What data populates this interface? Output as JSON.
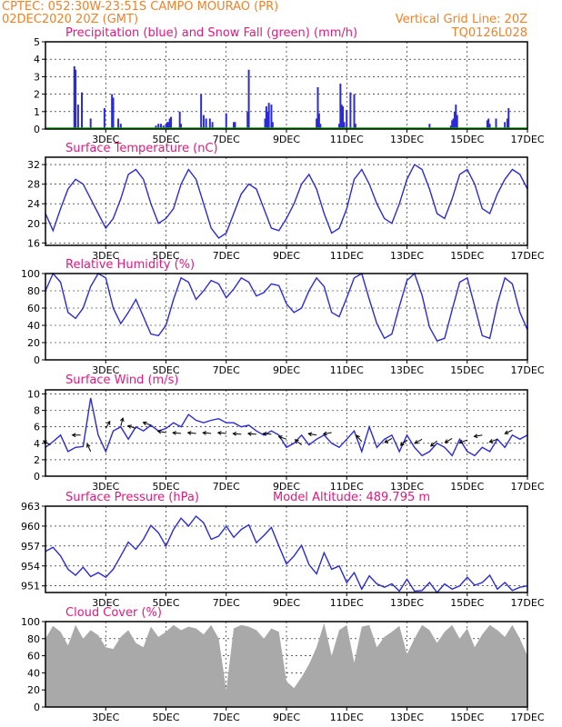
{
  "header": {
    "line1": "CPTEC:   052:30W-23:51S  CAMPO MOURAO (PR)",
    "line2": "02DEC2020 20Z (GMT)",
    "grid_note": "Vertical Grid Line: 20Z",
    "code": "TQ0126L028"
  },
  "x_axis": {
    "start_hour": -20,
    "end_hour": 364,
    "tick_labels": [
      "3DEC",
      "5DEC",
      "7DEC",
      "9DEC",
      "11DEC",
      "13DEC",
      "15DEC",
      "17DEC"
    ],
    "tick_hours": [
      28,
      76,
      124,
      172,
      220,
      268,
      316,
      364
    ]
  },
  "colors": {
    "header": "#f08228",
    "title": "#e0197d",
    "line": "#2b2bd6",
    "snow": "#00b400",
    "cloud": "#a9a9a9"
  },
  "chart_data": [
    {
      "id": "precip",
      "type": "bar",
      "title": "Precipitation (blue) and Snow Fall (green) (mm/h)",
      "ylim": [
        0,
        5
      ],
      "yticks": [
        "0",
        "1",
        "2",
        "3",
        "4",
        "5"
      ],
      "series": [
        {
          "name": "Precipitation",
          "x": [
            3,
            4,
            6,
            9,
            16,
            27,
            33,
            34,
            38,
            40,
            68,
            70,
            72,
            74,
            76,
            77,
            78,
            79,
            80,
            87,
            88,
            104,
            106,
            108,
            111,
            113,
            124,
            130,
            131,
            141,
            142,
            155,
            156,
            157,
            158,
            160,
            161,
            196,
            197,
            198,
            199,
            214,
            215,
            216,
            217,
            218,
            220,
            223,
            226,
            227,
            286,
            303,
            304,
            305,
            306,
            307,
            308,
            332,
            333,
            334,
            339,
            346,
            348,
            349
          ],
          "values": [
            3.6,
            3.4,
            1.4,
            2.1,
            0.6,
            1.2,
            2.0,
            1.8,
            0.6,
            0.3,
            0.2,
            0.3,
            0.3,
            0.2,
            0.3,
            0.4,
            0.4,
            0.6,
            0.7,
            1.0,
            0.3,
            2.0,
            0.8,
            0.6,
            0.6,
            0.4,
            0.9,
            0.4,
            0.4,
            1.0,
            3.4,
            0.6,
            1.3,
            1.0,
            1.5,
            1.4,
            0.4,
            0.6,
            2.4,
            0.9,
            0.3,
            0.3,
            2.6,
            1.4,
            1.3,
            0.4,
            1.1,
            2.1,
            2.0,
            0.3,
            0.3,
            0.2,
            0.5,
            0.6,
            1.0,
            1.4,
            0.8,
            0.5,
            0.6,
            0.3,
            0.6,
            0.4,
            0.6,
            1.2
          ]
        },
        {
          "name": "Snow Fall",
          "x": [],
          "values": []
        }
      ]
    },
    {
      "id": "temp",
      "type": "line",
      "title": "Surface Temperature (nC)",
      "ylim": [
        15.5,
        33.5
      ],
      "yticks": [
        "16",
        "20",
        "24",
        "28",
        "32"
      ],
      "x": [
        -20,
        -14,
        -8,
        -2,
        4,
        10,
        16,
        22,
        28,
        34,
        40,
        46,
        52,
        58,
        64,
        70,
        76,
        82,
        88,
        94,
        100,
        106,
        112,
        118,
        124,
        130,
        136,
        142,
        148,
        154,
        160,
        166,
        172,
        178,
        184,
        190,
        196,
        202,
        208,
        214,
        220,
        226,
        232,
        238,
        244,
        250,
        256,
        262,
        268,
        274,
        280,
        286,
        292,
        298,
        304,
        310,
        316,
        322,
        328,
        334,
        340,
        346,
        352,
        358,
        364
      ],
      "values": [
        22,
        18.5,
        23,
        27,
        29,
        28,
        25,
        22,
        19,
        21,
        25,
        30,
        31,
        29,
        24,
        20,
        21,
        23,
        28,
        31,
        29,
        24,
        19,
        17,
        18,
        22,
        26,
        28,
        27,
        23,
        19,
        18.5,
        21,
        24,
        28,
        30,
        27,
        22,
        18,
        19,
        23,
        29,
        31,
        28,
        24,
        21,
        20,
        24,
        29,
        32,
        31,
        27,
        22,
        21,
        25,
        30,
        31,
        28,
        23,
        22,
        26,
        29,
        31,
        30,
        27
      ]
    },
    {
      "id": "rh",
      "type": "line",
      "title": "Relative Humidity (%)",
      "ylim": [
        0,
        100
      ],
      "yticks": [
        "0",
        "20",
        "40",
        "60",
        "80",
        "100"
      ],
      "x": [
        -20,
        -14,
        -8,
        -2,
        4,
        10,
        16,
        22,
        28,
        34,
        40,
        46,
        52,
        58,
        64,
        70,
        76,
        82,
        88,
        94,
        100,
        106,
        112,
        118,
        124,
        130,
        136,
        142,
        148,
        154,
        160,
        166,
        172,
        178,
        184,
        190,
        196,
        202,
        208,
        214,
        220,
        226,
        232,
        238,
        244,
        250,
        256,
        262,
        268,
        274,
        280,
        286,
        292,
        298,
        304,
        310,
        316,
        322,
        328,
        334,
        340,
        346,
        352,
        358,
        364
      ],
      "values": [
        80,
        100,
        90,
        55,
        48,
        60,
        85,
        100,
        95,
        60,
        42,
        55,
        70,
        50,
        30,
        28,
        40,
        70,
        95,
        90,
        70,
        80,
        92,
        88,
        72,
        82,
        95,
        90,
        74,
        78,
        88,
        86,
        65,
        55,
        60,
        80,
        95,
        85,
        55,
        50,
        72,
        95,
        100,
        70,
        42,
        25,
        30,
        62,
        92,
        100,
        75,
        38,
        22,
        25,
        58,
        90,
        95,
        62,
        28,
        25,
        65,
        95,
        88,
        55,
        35
      ]
    },
    {
      "id": "wind",
      "type": "line",
      "title": "Surface Wind (m/s)",
      "ylim": [
        0,
        10.5
      ],
      "yticks": [
        "0",
        "2",
        "4",
        "6",
        "8",
        "10"
      ],
      "x": [
        -20,
        -14,
        -8,
        -2,
        4,
        10,
        16,
        22,
        28,
        34,
        40,
        46,
        52,
        58,
        64,
        70,
        76,
        82,
        88,
        94,
        100,
        106,
        112,
        118,
        124,
        130,
        136,
        142,
        148,
        154,
        160,
        166,
        172,
        178,
        184,
        190,
        196,
        202,
        208,
        214,
        220,
        226,
        232,
        238,
        244,
        250,
        256,
        262,
        268,
        274,
        280,
        286,
        292,
        298,
        304,
        310,
        316,
        322,
        328,
        334,
        340,
        346,
        352,
        358,
        364
      ],
      "values": [
        3.5,
        4.2,
        5.0,
        3.0,
        3.5,
        3.6,
        9.5,
        5.0,
        3.0,
        5.5,
        6.0,
        4.5,
        6.0,
        5.5,
        6.2,
        5.5,
        5.8,
        6.5,
        6.0,
        7.5,
        6.8,
        6.5,
        6.8,
        7.0,
        6.5,
        6.5,
        6.0,
        6.2,
        5.5,
        5.0,
        5.5,
        5.0,
        3.5,
        4.0,
        5.0,
        3.8,
        4.5,
        5.0,
        4.0,
        3.5,
        4.5,
        5.5,
        3.0,
        6.0,
        3.5,
        4.5,
        5.0,
        3.0,
        5.0,
        3.5,
        2.5,
        3.0,
        4.0,
        3.5,
        2.5,
        4.5,
        3.0,
        2.5,
        3.5,
        3.0,
        4.5,
        3.5,
        5.0,
        4.5,
        5.0
      ],
      "arrows": [
        {
          "x": -16,
          "y": 3.8,
          "angle": 210
        },
        {
          "x": 8,
          "y": 5.0,
          "angle": 180
        },
        {
          "x": 16,
          "y": 3.0,
          "angle": 245
        },
        {
          "x": 28,
          "y": 5.8,
          "angle": 300
        },
        {
          "x": 40,
          "y": 6.1,
          "angle": 285
        },
        {
          "x": 52,
          "y": 5.8,
          "angle": 200
        },
        {
          "x": 64,
          "y": 6.2,
          "angle": 200
        },
        {
          "x": 76,
          "y": 5.3,
          "angle": 190
        },
        {
          "x": 88,
          "y": 5.2,
          "angle": 185
        },
        {
          "x": 100,
          "y": 5.2,
          "angle": 185
        },
        {
          "x": 112,
          "y": 5.2,
          "angle": 185
        },
        {
          "x": 124,
          "y": 5.2,
          "angle": 185
        },
        {
          "x": 136,
          "y": 5.1,
          "angle": 185
        },
        {
          "x": 148,
          "y": 5.1,
          "angle": 185
        },
        {
          "x": 160,
          "y": 5.1,
          "angle": 185
        },
        {
          "x": 172,
          "y": 4.5,
          "angle": 200
        },
        {
          "x": 184,
          "y": 3.8,
          "angle": 220
        },
        {
          "x": 196,
          "y": 5.0,
          "angle": 190
        },
        {
          "x": 208,
          "y": 5.3,
          "angle": 170
        },
        {
          "x": 232,
          "y": 4.2,
          "angle": 230
        },
        {
          "x": 256,
          "y": 4.6,
          "angle": 150
        },
        {
          "x": 268,
          "y": 4.4,
          "angle": 140
        },
        {
          "x": 280,
          "y": 4.5,
          "angle": 150
        },
        {
          "x": 292,
          "y": 4.3,
          "angle": 140
        },
        {
          "x": 304,
          "y": 4.6,
          "angle": 150
        },
        {
          "x": 316,
          "y": 4.4,
          "angle": 160
        },
        {
          "x": 328,
          "y": 5.0,
          "angle": 170
        },
        {
          "x": 340,
          "y": 4.5,
          "angle": 160
        },
        {
          "x": 352,
          "y": 5.6,
          "angle": 155
        }
      ]
    },
    {
      "id": "pres",
      "type": "line",
      "title": "Surface Pressure (hPa)",
      "note": "Model Altitude: 489.795 m",
      "ylim": [
        950,
        963
      ],
      "yticks": [
        "951",
        "954",
        "957",
        "960",
        "963"
      ],
      "x": [
        -20,
        -14,
        -8,
        -2,
        4,
        10,
        16,
        22,
        28,
        34,
        40,
        46,
        52,
        58,
        64,
        70,
        76,
        82,
        88,
        94,
        100,
        106,
        112,
        118,
        124,
        130,
        136,
        142,
        148,
        154,
        160,
        166,
        172,
        178,
        184,
        190,
        196,
        202,
        208,
        214,
        220,
        226,
        232,
        238,
        244,
        250,
        256,
        262,
        268,
        274,
        280,
        286,
        292,
        298,
        304,
        310,
        316,
        322,
        328,
        334,
        340,
        346,
        352,
        358,
        364
      ],
      "values": [
        956.2,
        956.8,
        955.5,
        953.5,
        952.6,
        953.8,
        952.4,
        953.0,
        952.3,
        953.5,
        955.5,
        957.6,
        956.5,
        958.0,
        960.1,
        959.0,
        957.0,
        959.5,
        961.2,
        960.0,
        961.5,
        960.5,
        958.0,
        958.5,
        960.0,
        958.3,
        959.5,
        960.2,
        957.5,
        958.6,
        959.8,
        957.0,
        954.3,
        955.5,
        957.1,
        954.2,
        952.8,
        956.0,
        953.5,
        954.0,
        951.5,
        953.0,
        950.5,
        952.5,
        951.3,
        950.8,
        951.3,
        950.2,
        952.0,
        950.2,
        950.3,
        951.5,
        950.0,
        951.3,
        950.5,
        951.0,
        952.3,
        951.1,
        951.5,
        952.6,
        950.5,
        951.5,
        950.3,
        950.8,
        951.0
      ]
    },
    {
      "id": "cloud",
      "type": "area",
      "title": "Cloud Cover (%)",
      "ylim": [
        0,
        100
      ],
      "yticks": [
        "0",
        "20",
        "40",
        "60",
        "80",
        "100"
      ],
      "x": [
        -20,
        -14,
        -8,
        -2,
        4,
        10,
        16,
        22,
        28,
        34,
        40,
        46,
        52,
        58,
        64,
        70,
        76,
        82,
        88,
        94,
        100,
        106,
        112,
        118,
        124,
        130,
        136,
        142,
        148,
        154,
        160,
        166,
        172,
        178,
        184,
        190,
        196,
        202,
        208,
        214,
        220,
        226,
        232,
        238,
        244,
        250,
        256,
        262,
        268,
        274,
        280,
        286,
        292,
        298,
        304,
        310,
        316,
        322,
        328,
        334,
        340,
        346,
        352,
        358,
        364
      ],
      "values": [
        80,
        95,
        88,
        72,
        96,
        80,
        90,
        84,
        70,
        68,
        82,
        90,
        75,
        70,
        94,
        82,
        88,
        96,
        90,
        94,
        92,
        85,
        96,
        80,
        20,
        92,
        96,
        94,
        90,
        80,
        92,
        88,
        30,
        22,
        35,
        50,
        70,
        98,
        60,
        90,
        96,
        52,
        94,
        96,
        70,
        82,
        88,
        95,
        62,
        80,
        96,
        90,
        75,
        88,
        96,
        80,
        92,
        70,
        85,
        96,
        90,
        82,
        96,
        80,
        60
      ]
    }
  ]
}
